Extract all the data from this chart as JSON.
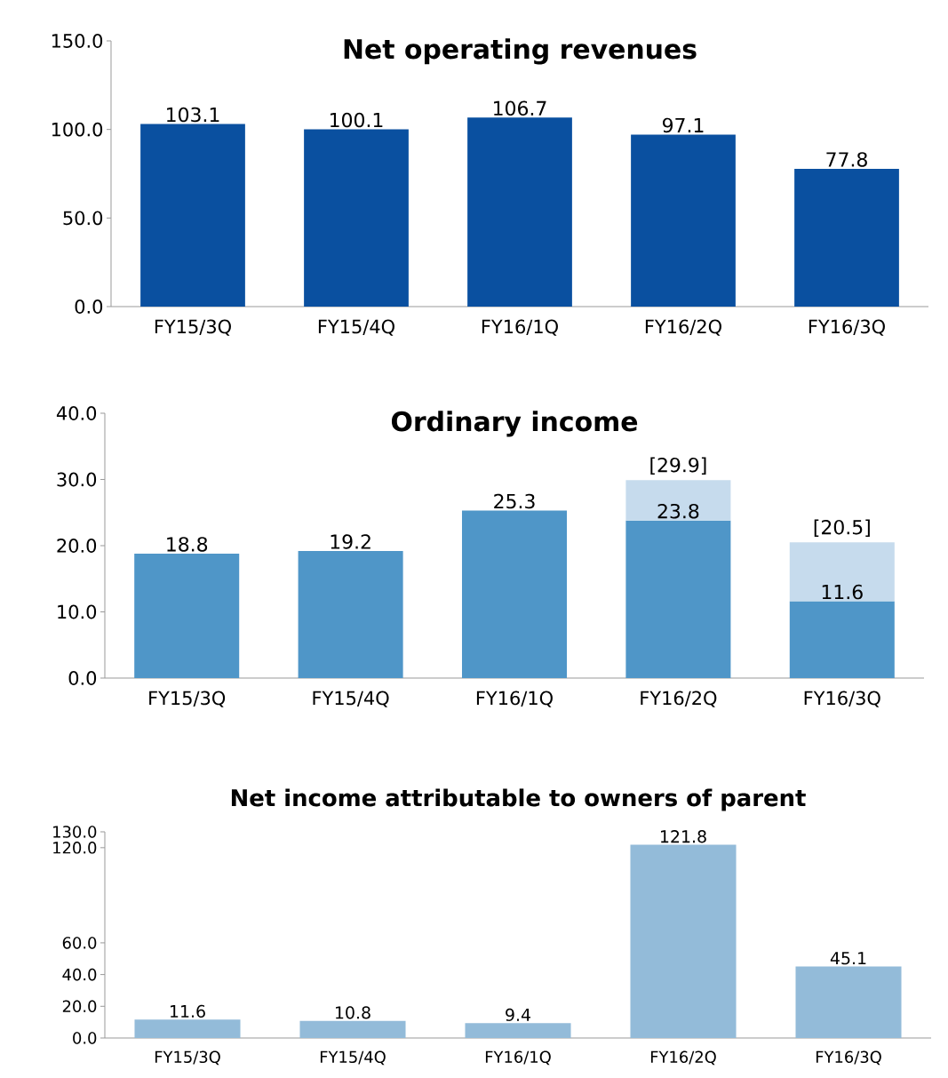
{
  "chart_data": [
    {
      "type": "bar",
      "title": "Net operating revenues",
      "categories": [
        "FY15/3Q",
        "FY15/4Q",
        "FY16/1Q",
        "FY16/2Q",
        "FY16/3Q"
      ],
      "values": [
        103.1,
        100.1,
        106.7,
        97.1,
        77.8
      ],
      "color": "#0a50a0",
      "ylim": [
        0,
        150
      ],
      "yticks": [
        {
          "value": 0,
          "label": "0.0"
        },
        {
          "value": 50,
          "label": "50.0"
        },
        {
          "value": 100,
          "label": "100.0"
        },
        {
          "value": 150,
          "label": "150.0"
        }
      ],
      "data_labels": true
    },
    {
      "type": "bar",
      "stacked": true,
      "title": "Ordinary income",
      "categories": [
        "FY15/3Q",
        "FY15/4Q",
        "FY16/1Q",
        "FY16/2Q",
        "FY16/3Q"
      ],
      "series": [
        {
          "color": "#4f96c8",
          "values": [
            18.8,
            19.2,
            25.3,
            23.8,
            11.6
          ],
          "value_labels": [
            "18.8",
            "19.2",
            "25.3",
            "23.8",
            "11.6"
          ]
        },
        {
          "color": "#c6dbed",
          "values": [
            null,
            null,
            null,
            6.1,
            8.9
          ]
        }
      ],
      "totals": [
        null,
        null,
        null,
        "[29.9]",
        "[20.5]"
      ],
      "ylim": [
        0,
        40
      ],
      "yticks": [
        {
          "value": 0,
          "label": "0.0"
        },
        {
          "value": 10,
          "label": "10.0"
        },
        {
          "value": 20,
          "label": "20.0"
        },
        {
          "value": 30,
          "label": "30.0"
        },
        {
          "value": 40,
          "label": "40.0"
        }
      ]
    },
    {
      "type": "bar",
      "title": "Net income attributable to owners of parent",
      "categories": [
        "FY15/3Q",
        "FY15/4Q",
        "FY16/1Q",
        "FY16/2Q",
        "FY16/3Q"
      ],
      "values": [
        11.6,
        10.8,
        9.4,
        121.8,
        45.1
      ],
      "color": "#93bbd9",
      "ylim": [
        0,
        130
      ],
      "yticks": [
        {
          "value": 0,
          "label": "0.0"
        },
        {
          "value": 20,
          "label": "20.0"
        },
        {
          "value": 40,
          "label": "40.0"
        },
        {
          "value": 60,
          "label": "60.0"
        },
        {
          "value": 120,
          "label": "120.0"
        },
        {
          "value": 130,
          "label": "130.0"
        }
      ],
      "data_labels": true
    }
  ]
}
